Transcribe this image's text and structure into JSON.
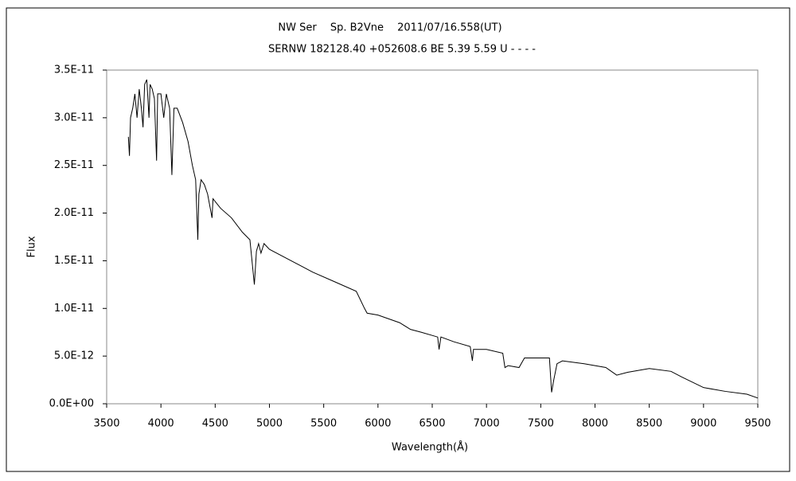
{
  "chart_data": {
    "type": "line",
    "title": "NW Ser　 Sp. B2Vne　 2011/07/16.558(UT)",
    "subtitle": "SERNW 182128.40 +052608.6 BE 5.39 5.59 U - - - -",
    "x_label": "Wavelength(Å)",
    "y_label": "Flux",
    "x": [
      3700,
      3710,
      3720,
      3740,
      3760,
      3780,
      3800,
      3820,
      3835,
      3850,
      3870,
      3890,
      3900,
      3920,
      3940,
      3960,
      3970,
      4000,
      4026,
      4050,
      4080,
      4101,
      4120,
      4150,
      4200,
      4250,
      4290,
      4320,
      4340,
      4350,
      4370,
      4400,
      4430,
      4471,
      4480,
      4550,
      4650,
      4750,
      4820,
      4861,
      4880,
      4900,
      4922,
      4950,
      5000,
      5200,
      5400,
      5600,
      5800,
      5876,
      5900,
      6000,
      6200,
      6300,
      6400,
      6550,
      6563,
      6580,
      6700,
      6850,
      6870,
      6880,
      7000,
      7150,
      7170,
      7200,
      7300,
      7350,
      7500,
      7580,
      7600,
      7620,
      7650,
      7700,
      7900,
      8100,
      8200,
      8300,
      8500,
      8700,
      8800,
      9000,
      9200,
      9400,
      9500
    ],
    "series": [
      {
        "name": "Flux",
        "color": "#000000",
        "values": [
          2.8e-11,
          2.6e-11,
          3e-11,
          3.1e-11,
          3.25e-11,
          3e-11,
          3.3e-11,
          3.1e-11,
          2.9e-11,
          3.35e-11,
          3.4e-11,
          3e-11,
          3.35e-11,
          3.3e-11,
          3.2e-11,
          2.55e-11,
          3.25e-11,
          3.25e-11,
          3e-11,
          3.25e-11,
          3.1e-11,
          2.4e-11,
          3.1e-11,
          3.1e-11,
          2.95e-11,
          2.75e-11,
          2.5e-11,
          2.35e-11,
          1.72e-11,
          2.2e-11,
          2.35e-11,
          2.3e-11,
          2.2e-11,
          1.95e-11,
          2.15e-11,
          2.05e-11,
          1.95e-11,
          1.8e-11,
          1.72e-11,
          1.25e-11,
          1.6e-11,
          1.68e-11,
          1.58e-11,
          1.68e-11,
          1.62e-11,
          1.5e-11,
          1.38e-11,
          1.28e-11,
          1.18e-11,
          1e-11,
          9.5e-12,
          9.3e-12,
          8.5e-12,
          7.8e-12,
          7.5e-12,
          7e-12,
          5.7e-12,
          7e-12,
          6.5e-12,
          6e-12,
          4.5e-12,
          5.7e-12,
          5.7e-12,
          5.3e-12,
          3.8e-12,
          4e-12,
          3.8e-12,
          4.8e-12,
          4.8e-12,
          4.8e-12,
          1.2e-12,
          2.5e-12,
          4.2e-12,
          4.5e-12,
          4.2e-12,
          3.8e-12,
          3e-12,
          3.3e-12,
          3.7e-12,
          3.4e-12,
          2.8e-12,
          1.7e-12,
          1.3e-12,
          1e-12,
          6e-13
        ]
      }
    ],
    "xlim": [
      3500,
      9500
    ],
    "xticks": [
      3500,
      4000,
      4500,
      5000,
      5500,
      6000,
      6500,
      7000,
      7500,
      8000,
      8500,
      9000,
      9500
    ],
    "ylim": [
      0,
      3.5e-11
    ],
    "yticks": [
      {
        "value": 0,
        "label": "0.0E+00"
      },
      {
        "value": 5e-12,
        "label": "5.0E-12"
      },
      {
        "value": 1e-11,
        "label": "1.0E-11"
      },
      {
        "value": 1.5e-11,
        "label": "1.5E-11"
      },
      {
        "value": 2e-11,
        "label": "2.0E-11"
      },
      {
        "value": 2.5e-11,
        "label": "2.5E-11"
      },
      {
        "value": 3e-11,
        "label": "3.0E-11"
      },
      {
        "value": 3.5e-11,
        "label": "3.5E-11"
      }
    ],
    "grid": false
  }
}
